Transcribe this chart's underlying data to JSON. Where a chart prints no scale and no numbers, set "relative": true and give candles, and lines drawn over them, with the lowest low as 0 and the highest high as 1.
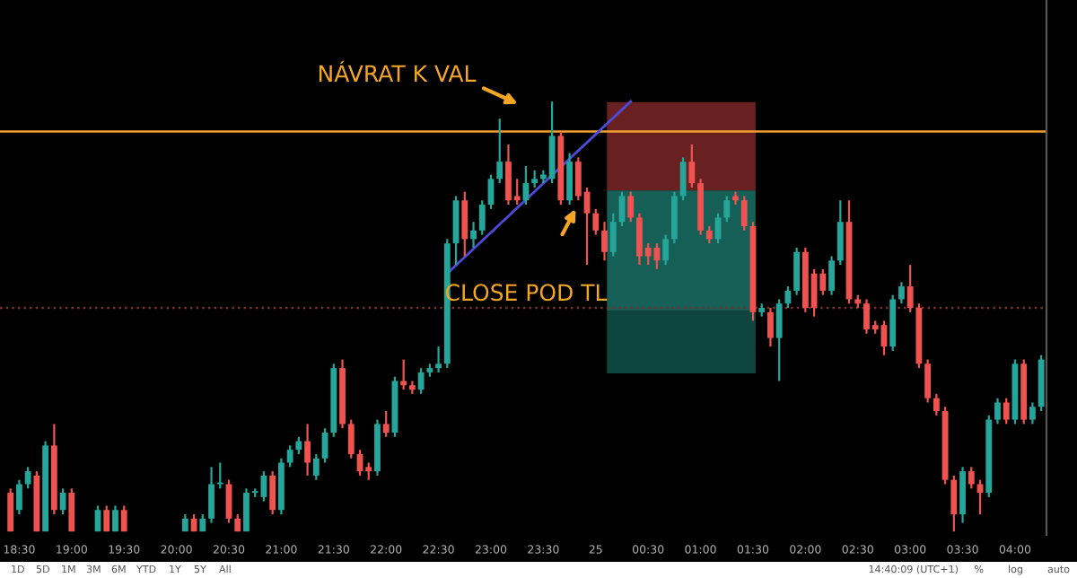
{
  "chart_data": {
    "type": "candlestick",
    "relative": true,
    "categories": [
      null,
      "18:30",
      null,
      null,
      null,
      null,
      null,
      "19:00",
      null,
      null,
      null,
      null,
      null,
      "19:30",
      null,
      null,
      null,
      null,
      null,
      "20:00",
      null,
      null,
      null,
      null,
      null,
      "20:30",
      null,
      null,
      null,
      null,
      null,
      "21:00",
      null,
      null,
      null,
      null,
      null,
      "21:30",
      null,
      null,
      null,
      null,
      null,
      "22:00",
      null,
      null,
      null,
      null,
      null,
      "22:30",
      null,
      null,
      null,
      null,
      null,
      "23:00",
      null,
      null,
      null,
      null,
      null,
      "23:30",
      null,
      null,
      null,
      null,
      null,
      "25",
      null,
      null,
      null,
      null,
      null,
      "00:30",
      null,
      null,
      null,
      null,
      null,
      "01:00",
      null,
      null,
      null,
      null,
      null,
      "01:30",
      null,
      null,
      null,
      null,
      null,
      "02:00",
      null,
      null,
      null,
      null,
      null,
      "02:30",
      null,
      null,
      null,
      null,
      null,
      "03:00",
      null,
      null,
      null,
      null,
      null,
      "03:30",
      null,
      null,
      null,
      null,
      null,
      "04:00",
      null,
      null,
      null
    ],
    "colors": [
      "#ef5350",
      "#26a69a",
      "#26a69a",
      "#ef5350",
      "#26a69a",
      "#ef5350",
      "#26a69a",
      "#ef5350",
      null,
      null,
      "#26a69a",
      "#ef5350",
      "#26a69a",
      "#ef5350",
      null,
      null,
      null,
      null,
      null,
      null,
      "#26a69a",
      "#ef5350",
      "#26a69a",
      "#26a69a",
      "#26a69a",
      "#ef5350",
      "#ef5350",
      "#26a69a",
      "#26a69a",
      "#26a69a",
      "#ef5350",
      "#26a69a",
      "#26a69a",
      "#26a69a",
      "#ef5350",
      "#26a69a",
      "#26a69a",
      "#26a69a",
      "#ef5350",
      "#ef5350",
      "#ef5350",
      "#ef5350",
      "#26a69a",
      "#ef5350",
      "#26a69a",
      "#ef5350",
      "#ef5350",
      "#26a69a",
      "#26a69a",
      "#26a69a",
      "#26a69a",
      "#26a69a",
      "#ef5350",
      "#26a69a",
      "#26a69a",
      "#26a69a",
      "#26a69a",
      "#ef5350",
      "#ef5350",
      "#26a69a",
      "#26a69a",
      "#26a69a",
      "#26a69a",
      "#ef5350",
      "#26a69a",
      "#ef5350",
      "#ef5350",
      "#ef5350",
      "#ef5350",
      "#26a69a",
      "#26a69a",
      "#ef5350",
      "#ef5350",
      "#ef5350",
      "#ef5350",
      "#26a69a",
      "#26a69a",
      "#26a69a",
      "#ef5350",
      "#ef5350",
      "#ef5350",
      "#26a69a",
      "#26a69a",
      "#ef5350",
      "#ef5350",
      "#ef5350",
      "#26a69a",
      "#ef5350",
      "#26a69a",
      "#26a69a",
      "#26a69a",
      "#ef5350",
      "#ef5350",
      "#ef5350",
      "#26a69a",
      "#26a69a",
      "#ef5350",
      "#ef5350",
      "#ef5350",
      "#ef5350",
      "#ef5350",
      "#26a69a",
      "#26a69a",
      "#ef5350",
      "#ef5350",
      "#ef5350",
      "#ef5350",
      "#ef5350",
      "#ef5350",
      "#26a69a",
      "#ef5350",
      "#ef5350",
      "#26a69a",
      "#26a69a",
      "#ef5350",
      "#26a69a",
      "#ef5350",
      "#26a69a",
      "#26a69a"
    ],
    "ohlc": [
      [
        0.09,
        0.1,
        0,
        0
      ],
      [
        0.05,
        0.12,
        0.04,
        0.11
      ],
      [
        0.11,
        0.15,
        0.1,
        0.14
      ],
      [
        0.13,
        0.14,
        0,
        0
      ],
      [
        0,
        0.21,
        0,
        0.2
      ],
      [
        0.2,
        0.25,
        0.04,
        0.05
      ],
      [
        0.05,
        0.1,
        0.04,
        0.09
      ],
      [
        0.09,
        0.1,
        0,
        0
      ],
      null,
      null,
      [
        0,
        0.06,
        0,
        0.05
      ],
      [
        0.05,
        0.06,
        0,
        0
      ],
      [
        0,
        0.06,
        0,
        0.05
      ],
      [
        0.05,
        0.06,
        0,
        0
      ],
      null,
      null,
      null,
      null,
      null,
      null,
      [
        0,
        0.04,
        0,
        0.03
      ],
      [
        0.03,
        0.04,
        0,
        0
      ],
      [
        0,
        0.04,
        0,
        0.03
      ],
      [
        0.03,
        0.15,
        0.02,
        0.11
      ],
      [
        0.11,
        0.16,
        0.1,
        0.11
      ],
      [
        0.11,
        0.12,
        0.02,
        0.03
      ],
      [
        0.03,
        0.04,
        0,
        0
      ],
      [
        0,
        0.1,
        0,
        0.09
      ],
      [
        0.09,
        0.1,
        0.08,
        0.09
      ],
      [
        0.08,
        0.14,
        0.07,
        0.13
      ],
      [
        0.13,
        0.14,
        0.04,
        0.05
      ],
      [
        0.05,
        0.17,
        0.04,
        0.16
      ],
      [
        0.16,
        0.2,
        0.15,
        0.19
      ],
      [
        0.19,
        0.22,
        0.18,
        0.21
      ],
      [
        0.21,
        0.25,
        0.13,
        0.16
      ],
      [
        0.13,
        0.18,
        0.12,
        0.17
      ],
      [
        0.17,
        0.24,
        0.16,
        0.23
      ],
      [
        0.23,
        0.39,
        0.22,
        0.38
      ],
      [
        0.38,
        0.4,
        0.24,
        0.25
      ],
      [
        0.25,
        0.26,
        0.17,
        0.18
      ],
      [
        0.18,
        0.19,
        0.13,
        0.14
      ],
      [
        0.15,
        0.16,
        0.12,
        0.14
      ],
      [
        0.14,
        0.26,
        0.13,
        0.25
      ],
      [
        0.25,
        0.28,
        0.22,
        0.23
      ],
      [
        0.23,
        0.36,
        0.22,
        0.35
      ],
      [
        0.35,
        0.4,
        0.33,
        0.34
      ],
      [
        0.34,
        0.35,
        0.32,
        0.33
      ],
      [
        0.33,
        0.38,
        0.32,
        0.37
      ],
      [
        0.37,
        0.39,
        0.36,
        0.38
      ],
      [
        0.38,
        0.43,
        0.37,
        0.39
      ],
      [
        0.39,
        0.68,
        0.38,
        0.67
      ],
      [
        0.67,
        0.78,
        0.62,
        0.77
      ],
      [
        0.77,
        0.79,
        0.64,
        0.68
      ],
      [
        0.68,
        0.72,
        0.66,
        0.7
      ],
      [
        0.7,
        0.77,
        0.69,
        0.76
      ],
      [
        0.76,
        0.83,
        0.75,
        0.82
      ],
      [
        0.82,
        0.96,
        0.81,
        0.86
      ],
      [
        0.86,
        0.9,
        0.76,
        0.77
      ],
      [
        0.78,
        0.82,
        0.76,
        0.77
      ],
      [
        0.77,
        0.85,
        0.76,
        0.81
      ],
      [
        0.81,
        0.84,
        0.8,
        0.82
      ],
      [
        0.82,
        0.84,
        0.81,
        0.83
      ],
      [
        0.82,
        1,
        0.81,
        0.92
      ],
      [
        0.92,
        0.93,
        0.76,
        0.77
      ],
      [
        0.77,
        0.88,
        0.76,
        0.86
      ],
      [
        0.86,
        0.87,
        0.77,
        0.78
      ],
      [
        0.79,
        0.8,
        0.62,
        0.74
      ],
      [
        0.74,
        0.75,
        0.69,
        0.7
      ],
      [
        0.7,
        0.72,
        0.63,
        0.65
      ],
      [
        0.65,
        0.74,
        0.64,
        0.72
      ],
      [
        0.72,
        0.79,
        0.71,
        0.78
      ],
      [
        0.78,
        0.79,
        0.72,
        0.73
      ],
      [
        0.73,
        0.74,
        0.62,
        0.64
      ],
      [
        0.66,
        0.67,
        0.62,
        0.64
      ],
      [
        0.66,
        0.67,
        0.61,
        0.63
      ],
      [
        0.63,
        0.69,
        0.62,
        0.68
      ],
      [
        0.68,
        0.79,
        0.67,
        0.78
      ],
      [
        0.78,
        0.87,
        0.77,
        0.86
      ],
      [
        0.86,
        0.9,
        0.8,
        0.81
      ],
      [
        0.81,
        0.82,
        0.69,
        0.7
      ],
      [
        0.7,
        0.71,
        0.67,
        0.68
      ],
      [
        0.68,
        0.74,
        0.67,
        0.73
      ],
      [
        0.73,
        0.78,
        0.72,
        0.77
      ],
      [
        0.78,
        0.79,
        0.76,
        0.77
      ],
      [
        0.77,
        0.78,
        0.7,
        0.71
      ],
      [
        0.71,
        0.72,
        0.49,
        0.51
      ],
      [
        0.51,
        0.53,
        0.5,
        0.52
      ],
      [
        0.51,
        0.52,
        0.43,
        0.45
      ],
      [
        0.45,
        0.54,
        0.35,
        0.53
      ],
      [
        0.53,
        0.57,
        0.52,
        0.56
      ],
      [
        0.56,
        0.66,
        0.55,
        0.65
      ],
      [
        0.65,
        0.66,
        0.51,
        0.52
      ],
      [
        0.6,
        0.61,
        0.5,
        0.52
      ],
      [
        0.6,
        0.61,
        0.55,
        0.56
      ],
      [
        0.56,
        0.64,
        0.55,
        0.63
      ],
      [
        0.63,
        0.77,
        0.62,
        0.72
      ],
      [
        0.72,
        0.77,
        0.53,
        0.54
      ],
      [
        0.54,
        0.55,
        0.52,
        0.53
      ],
      [
        0.53,
        0.54,
        0.46,
        0.47
      ],
      [
        0.48,
        0.49,
        0.46,
        0.47
      ],
      [
        0.48,
        0.49,
        0.41,
        0.43
      ],
      [
        0.43,
        0.55,
        0.42,
        0.54
      ],
      [
        0.54,
        0.58,
        0.53,
        0.57
      ],
      [
        0.57,
        0.62,
        0.51,
        0.52
      ],
      [
        0.52,
        0.53,
        0.38,
        0.39
      ],
      [
        0.39,
        0.4,
        0.3,
        0.31
      ],
      [
        0.31,
        0.32,
        0.27,
        0.28
      ],
      [
        0.28,
        0.29,
        0.11,
        0.12
      ],
      [
        0.12,
        0.13,
        0,
        0.04
      ],
      [
        0.04,
        0.15,
        0.02,
        0.14
      ],
      [
        0.14,
        0.15,
        0.1,
        0.11
      ],
      [
        0.11,
        0.12,
        0.04,
        0.09
      ],
      [
        0.09,
        0.27,
        0.08,
        0.26
      ],
      [
        0.26,
        0.31,
        0.25,
        0.3
      ],
      [
        0.3,
        0.31,
        0.25,
        0.26
      ],
      [
        0.26,
        0.4,
        0.25,
        0.39
      ],
      [
        0.39,
        0.4,
        0.25,
        0.26
      ],
      [
        0.26,
        0.3,
        0.25,
        0.29
      ],
      [
        0.29,
        0.41,
        0.28,
        0.4
      ]
    ],
    "series": [
      {
        "type": "line",
        "color": "#4b4bd8",
        "values": [
          null,
          null,
          null,
          null,
          null,
          null,
          null,
          null,
          null,
          null,
          null,
          null,
          null,
          null,
          null,
          null,
          null,
          null,
          null,
          null,
          null,
          null,
          null,
          null,
          null,
          null,
          null,
          null,
          null,
          null,
          null,
          null,
          null,
          null,
          null,
          null,
          null,
          null,
          null,
          null,
          null,
          null,
          null,
          null,
          null,
          null,
          null,
          null,
          null,
          null,
          0.6,
          null,
          null,
          null,
          null,
          null,
          null,
          null,
          null,
          null,
          null,
          null,
          null,
          null,
          null,
          null,
          null,
          null,
          null,
          null,
          null,
          1.0,
          null,
          null,
          null,
          null,
          null,
          null,
          null,
          null,
          null,
          null,
          null,
          null,
          null,
          null,
          null,
          null,
          null,
          null,
          null,
          null,
          null,
          null,
          null,
          null,
          null,
          null,
          null,
          null,
          null,
          null,
          null,
          null,
          null,
          null,
          null,
          null,
          null,
          null,
          null,
          null,
          null,
          null,
          null,
          null,
          null,
          null,
          null
        ]
      }
    ],
    "ref_lines": [
      {
        "axis": "y",
        "value": 0.93,
        "color": "#f0a030",
        "line_style": "solid"
      },
      {
        "axis": "y",
        "value": 0.52,
        "color": "#7a2e2e",
        "line_style": "dotted"
      }
    ],
    "annotations": [
      "NÁVRAT K VAL",
      "CLOSE POD TL",
      "1D",
      "5D",
      "1M",
      "3M",
      "6M",
      "YTD",
      "1Y",
      "5Y",
      "All",
      "14:40:09 (UTC+1)",
      "%",
      "log",
      "auto"
    ]
  }
}
